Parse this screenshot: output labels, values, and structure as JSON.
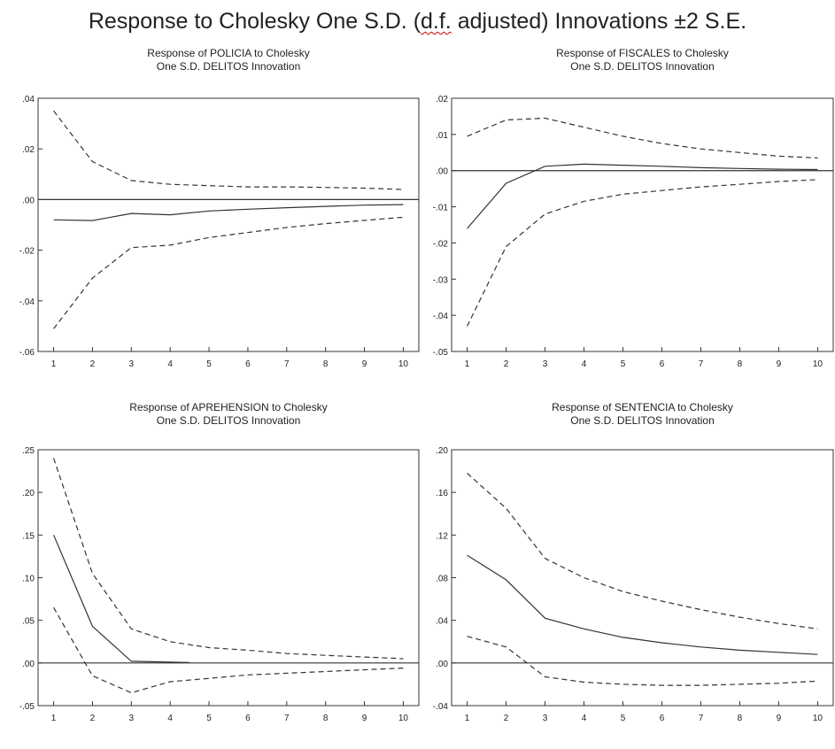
{
  "page": {
    "title_prefix": "Response to Cholesky One S.D. (",
    "title_flagged": "d.f.",
    "title_suffix": " adjusted) Innovations ±2 S.E."
  },
  "colors": {
    "line": "#333333",
    "axis": "#333333",
    "misspelling_underline": "#d00000"
  },
  "chart_data": [
    {
      "type": "line",
      "title": "Response of POLICIA to Cholesky\nOne S.D. DELITOS Innovation",
      "x": [
        1,
        2,
        3,
        4,
        5,
        6,
        7,
        8,
        9,
        10
      ],
      "xlim": [
        0.6,
        10.4
      ],
      "ylim": [
        -0.06,
        0.04
      ],
      "yticks": [
        -0.06,
        -0.04,
        -0.02,
        0.0,
        0.02,
        0.04
      ],
      "ytick_labels": [
        "-.06",
        "-.04",
        "-.02",
        ".00",
        ".02",
        ".04"
      ],
      "xticks": [
        1,
        2,
        3,
        4,
        5,
        6,
        7,
        8,
        9,
        10
      ],
      "zero_line": true,
      "grid": false,
      "series": [
        {
          "style": "solid",
          "values": [
            -0.008,
            -0.0083,
            -0.0055,
            -0.006,
            -0.0045,
            -0.0038,
            -0.0032,
            -0.0027,
            -0.0022,
            -0.002
          ]
        },
        {
          "style": "dashed",
          "values": [
            0.035,
            0.015,
            0.0075,
            0.006,
            0.0055,
            0.005,
            0.005,
            0.0048,
            0.0045,
            0.004
          ]
        },
        {
          "style": "dashed",
          "values": [
            -0.051,
            -0.031,
            -0.019,
            -0.018,
            -0.015,
            -0.013,
            -0.011,
            -0.0095,
            -0.0082,
            -0.007
          ]
        }
      ]
    },
    {
      "type": "line",
      "title": "Response of FISCALES to Cholesky\nOne S.D. DELITOS Innovation",
      "x": [
        1,
        2,
        3,
        4,
        5,
        6,
        7,
        8,
        9,
        10
      ],
      "xlim": [
        0.6,
        10.4
      ],
      "ylim": [
        -0.05,
        0.02
      ],
      "yticks": [
        -0.05,
        -0.04,
        -0.03,
        -0.02,
        -0.01,
        0.0,
        0.01,
        0.02
      ],
      "ytick_labels": [
        "-.05",
        "-.04",
        "-.03",
        "-.02",
        "-.01",
        ".00",
        ".01",
        ".02"
      ],
      "xticks": [
        1,
        2,
        3,
        4,
        5,
        6,
        7,
        8,
        9,
        10
      ],
      "zero_line": true,
      "grid": false,
      "series": [
        {
          "style": "solid",
          "values": [
            -0.016,
            -0.0035,
            0.0012,
            0.0018,
            0.0015,
            0.0012,
            0.0008,
            0.0006,
            0.0004,
            0.0003
          ]
        },
        {
          "style": "dashed",
          "values": [
            0.0095,
            0.014,
            0.0145,
            0.012,
            0.0095,
            0.0075,
            0.006,
            0.005,
            0.004,
            0.0035
          ]
        },
        {
          "style": "dashed",
          "values": [
            -0.043,
            -0.021,
            -0.012,
            -0.0085,
            -0.0065,
            -0.0055,
            -0.0045,
            -0.0038,
            -0.003,
            -0.0025
          ]
        }
      ]
    },
    {
      "type": "line",
      "title": "Response of APREHENSION to Cholesky\nOne S.D. DELITOS Innovation",
      "x": [
        1,
        2,
        3,
        4,
        5,
        6,
        7,
        8,
        9,
        10
      ],
      "xlim": [
        0.6,
        10.4
      ],
      "ylim": [
        -0.05,
        0.25
      ],
      "yticks": [
        -0.05,
        0.0,
        0.05,
        0.1,
        0.15,
        0.2,
        0.25
      ],
      "ytick_labels": [
        "-.05",
        ".00",
        ".05",
        ".10",
        ".15",
        ".20",
        ".25"
      ],
      "xticks": [
        1,
        2,
        3,
        4,
        5,
        6,
        7,
        8,
        9,
        10
      ],
      "zero_line": true,
      "grid": false,
      "series": [
        {
          "style": "solid",
          "x": [
            1,
            2,
            3,
            4,
            4.5
          ],
          "values": [
            0.15,
            0.043,
            0.002,
            0.001,
            0.0005
          ]
        },
        {
          "style": "dashed",
          "values": [
            0.24,
            0.105,
            0.04,
            0.025,
            0.018,
            0.015,
            0.011,
            0.009,
            0.007,
            0.005
          ]
        },
        {
          "style": "dashed",
          "values": [
            0.065,
            -0.015,
            -0.035,
            -0.022,
            -0.018,
            -0.014,
            -0.012,
            -0.01,
            -0.008,
            -0.006
          ]
        }
      ]
    },
    {
      "type": "line",
      "title": "Response of SENTENCIA to Cholesky\nOne S.D. DELITOS Innovation",
      "x": [
        1,
        2,
        3,
        4,
        5,
        6,
        7,
        8,
        9,
        10
      ],
      "xlim": [
        0.6,
        10.4
      ],
      "ylim": [
        -0.04,
        0.2
      ],
      "yticks": [
        -0.04,
        0.0,
        0.04,
        0.08,
        0.12,
        0.16,
        0.2
      ],
      "ytick_labels": [
        "-.04",
        ".00",
        ".04",
        ".08",
        ".12",
        ".16",
        ".20"
      ],
      "xticks": [
        1,
        2,
        3,
        4,
        5,
        6,
        7,
        8,
        9,
        10
      ],
      "zero_line": true,
      "grid": false,
      "series": [
        {
          "style": "solid",
          "values": [
            0.101,
            0.078,
            0.042,
            0.032,
            0.024,
            0.019,
            0.015,
            0.012,
            0.01,
            0.008
          ]
        },
        {
          "style": "dashed",
          "values": [
            0.178,
            0.145,
            0.098,
            0.08,
            0.067,
            0.058,
            0.05,
            0.043,
            0.037,
            0.032
          ]
        },
        {
          "style": "dashed",
          "values": [
            0.025,
            0.015,
            -0.013,
            -0.018,
            -0.02,
            -0.021,
            -0.021,
            -0.02,
            -0.019,
            -0.017
          ]
        }
      ]
    }
  ]
}
